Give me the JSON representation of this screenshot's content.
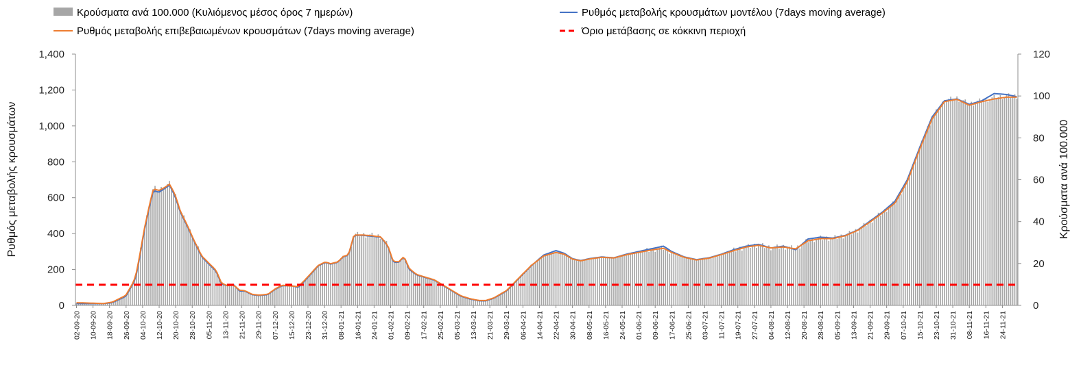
{
  "chart_data": {
    "type": "bar+line",
    "title": "",
    "legend": [
      {
        "key": "bars",
        "label": "Κρούσματα ανά 100.000 (Κυλιόμενος μέσος όρος 7 ημερών)",
        "color": "#a6a6a6",
        "symbol": "box"
      },
      {
        "key": "model",
        "label": "Ρυθμός μεταβολής κρουσμάτων μοντέλου (7days moving average)",
        "color": "#4472c4",
        "symbol": "line"
      },
      {
        "key": "confirmed",
        "label": "Ρυθμός μεταβολής επιβεβαιωμένων κρουσμάτων (7days moving average)",
        "color": "#ed7d31",
        "symbol": "line"
      },
      {
        "key": "threshold",
        "label": "Όριο μετάβασης σε κόκκινη περιοχή",
        "color": "#ff0000",
        "symbol": "dash"
      }
    ],
    "y_left": {
      "label": "Ρυθμός μεταβολής κρουσμάτων",
      "ylim": [
        0,
        1400
      ],
      "ticks": [
        "0",
        "200",
        "400",
        "600",
        "800",
        "1,000",
        "1,200",
        "1,400"
      ]
    },
    "y_right": {
      "label": "Κρούσματα ανά 100.000",
      "ylim": [
        0,
        120
      ],
      "ticks": [
        "0",
        "20",
        "40",
        "60",
        "80",
        "100",
        "120"
      ]
    },
    "x_tick_labels": [
      "02-09-20",
      "10-09-20",
      "18-09-20",
      "26-09-20",
      "04-10-20",
      "12-10-20",
      "20-10-20",
      "28-10-20",
      "05-11-20",
      "13-11-20",
      "21-11-20",
      "29-11-20",
      "07-12-20",
      "15-12-20",
      "23-12-20",
      "31-12-20",
      "08-01-21",
      "16-01-21",
      "24-01-21",
      "01-02-21",
      "09-02-21",
      "17-02-21",
      "25-02-21",
      "05-03-21",
      "13-03-21",
      "21-03-21",
      "29-03-21",
      "06-04-21",
      "14-04-21",
      "22-04-21",
      "30-04-21",
      "08-05-21",
      "16-05-21",
      "24-05-21",
      "01-06-21",
      "09-06-21",
      "17-06-21",
      "25-06-21",
      "03-07-21",
      "11-07-21",
      "19-07-21",
      "27-07-21",
      "04-08-21",
      "12-08-21",
      "20-08-21",
      "28-08-21",
      "05-09-21",
      "13-09-21",
      "21-09-21",
      "29-09-21",
      "07-10-21",
      "15-10-21",
      "23-10-21",
      "31-10-21",
      "08-11-21",
      "16-11-21",
      "24-11-21"
    ],
    "x_tick_step_days": 8,
    "days": 456,
    "threshold_left_axis": 115,
    "series": [
      {
        "name": "Ρυθμός μεταβολής κρουσμάτων μοντέλου (7days moving average)",
        "axis": "left",
        "keyframes": [
          [
            0,
            10
          ],
          [
            20,
            10
          ],
          [
            30,
            10
          ],
          [
            40,
            15
          ],
          [
            55,
            50
          ],
          [
            62,
            110
          ],
          [
            66,
            150
          ],
          [
            70,
            250
          ],
          [
            76,
            420
          ],
          [
            82,
            560
          ],
          [
            86,
            640
          ],
          [
            92,
            630
          ],
          [
            98,
            650
          ],
          [
            104,
            670
          ],
          [
            110,
            610
          ],
          [
            116,
            520
          ],
          [
            124,
            440
          ],
          [
            132,
            350
          ],
          [
            140,
            270
          ],
          [
            148,
            230
          ],
          [
            156,
            190
          ],
          [
            162,
            120
          ],
          [
            168,
            110
          ],
          [
            176,
            115
          ],
          [
            182,
            80
          ],
          [
            188,
            80
          ],
          [
            196,
            60
          ],
          [
            204,
            55
          ],
          [
            214,
            60
          ],
          [
            222,
            90
          ],
          [
            230,
            110
          ],
          [
            240,
            110
          ],
          [
            248,
            100
          ],
          [
            254,
            130
          ],
          [
            262,
            175
          ],
          [
            270,
            220
          ],
          [
            278,
            240
          ],
          [
            284,
            230
          ],
          [
            292,
            240
          ],
          [
            298,
            270
          ],
          [
            304,
            280
          ],
          [
            310,
            390
          ],
          [
            320,
            390
          ],
          [
            330,
            385
          ],
          [
            340,
            380
          ],
          [
            348,
            330
          ],
          [
            354,
            240
          ],
          [
            360,
            240
          ],
          [
            366,
            270
          ],
          [
            372,
            200
          ],
          [
            380,
            170
          ],
          [
            390,
            155
          ],
          [
            400,
            140
          ],
          [
            410,
            110
          ],
          [
            420,
            80
          ],
          [
            430,
            50
          ],
          [
            440,
            35
          ],
          [
            450,
            25
          ],
          [
            456,
            25
          ]
        ],
        "color": "#4472c4"
      },
      {
        "name": "Ρυθμός μεταβολής επιβεβαιωμένων κρουσμάτων (7days moving average)",
        "axis": "left",
        "keyframes": [
          [
            0,
            15
          ],
          [
            20,
            12
          ],
          [
            30,
            10
          ],
          [
            40,
            18
          ],
          [
            55,
            55
          ],
          [
            62,
            115
          ],
          [
            66,
            160
          ],
          [
            70,
            260
          ],
          [
            76,
            430
          ],
          [
            82,
            570
          ],
          [
            86,
            650
          ],
          [
            92,
            640
          ],
          [
            98,
            655
          ],
          [
            104,
            675
          ],
          [
            110,
            620
          ],
          [
            116,
            525
          ],
          [
            124,
            445
          ],
          [
            132,
            355
          ],
          [
            140,
            275
          ],
          [
            148,
            235
          ],
          [
            156,
            195
          ],
          [
            162,
            125
          ],
          [
            168,
            110
          ],
          [
            176,
            112
          ],
          [
            182,
            85
          ],
          [
            188,
            82
          ],
          [
            196,
            62
          ],
          [
            204,
            57
          ],
          [
            214,
            62
          ],
          [
            222,
            92
          ],
          [
            230,
            112
          ],
          [
            240,
            108
          ],
          [
            248,
            105
          ],
          [
            254,
            135
          ],
          [
            262,
            178
          ],
          [
            270,
            222
          ],
          [
            278,
            242
          ],
          [
            284,
            232
          ],
          [
            292,
            242
          ],
          [
            298,
            272
          ],
          [
            304,
            282
          ],
          [
            310,
            392
          ],
          [
            320,
            392
          ],
          [
            330,
            388
          ],
          [
            340,
            382
          ],
          [
            348,
            332
          ],
          [
            354,
            245
          ],
          [
            360,
            242
          ],
          [
            366,
            272
          ],
          [
            372,
            205
          ],
          [
            380,
            172
          ],
          [
            390,
            157
          ],
          [
            400,
            142
          ],
          [
            410,
            112
          ],
          [
            420,
            82
          ],
          [
            430,
            52
          ],
          [
            440,
            37
          ],
          [
            450,
            27
          ],
          [
            456,
            27
          ]
        ],
        "color": "#ed7d31"
      }
    ],
    "tail_model_keyframes": [
      [
        0,
        25
      ],
      [
        4,
        40
      ],
      [
        10,
        80
      ],
      [
        16,
        150
      ],
      [
        22,
        220
      ],
      [
        28,
        280
      ],
      [
        34,
        305
      ],
      [
        38,
        290
      ],
      [
        42,
        260
      ],
      [
        46,
        250
      ],
      [
        50,
        260
      ],
      [
        56,
        270
      ],
      [
        62,
        265
      ],
      [
        68,
        285
      ],
      [
        74,
        300
      ],
      [
        80,
        315
      ],
      [
        86,
        330
      ],
      [
        90,
        300
      ],
      [
        96,
        270
      ],
      [
        102,
        255
      ],
      [
        108,
        265
      ],
      [
        114,
        285
      ],
      [
        120,
        310
      ],
      [
        126,
        330
      ],
      [
        132,
        340
      ],
      [
        138,
        320
      ],
      [
        144,
        330
      ],
      [
        150,
        310
      ],
      [
        156,
        370
      ],
      [
        162,
        380
      ],
      [
        168,
        375
      ],
      [
        174,
        390
      ],
      [
        180,
        420
      ],
      [
        186,
        470
      ],
      [
        192,
        520
      ],
      [
        198,
        580
      ],
      [
        204,
        700
      ],
      [
        210,
        880
      ],
      [
        216,
        1050
      ],
      [
        222,
        1140
      ],
      [
        228,
        1150
      ],
      [
        234,
        1120
      ],
      [
        240,
        1140
      ],
      [
        246,
        1180
      ],
      [
        252,
        1175
      ],
      [
        258,
        1160
      ]
    ],
    "tail_confirmed_keyframes": [
      [
        0,
        27
      ],
      [
        4,
        42
      ],
      [
        10,
        82
      ],
      [
        16,
        152
      ],
      [
        22,
        222
      ],
      [
        28,
        275
      ],
      [
        34,
        295
      ],
      [
        38,
        285
      ],
      [
        42,
        258
      ],
      [
        46,
        248
      ],
      [
        50,
        258
      ],
      [
        56,
        268
      ],
      [
        62,
        264
      ],
      [
        68,
        282
      ],
      [
        74,
        295
      ],
      [
        80,
        308
      ],
      [
        86,
        318
      ],
      [
        90,
        295
      ],
      [
        96,
        268
      ],
      [
        102,
        253
      ],
      [
        108,
        263
      ],
      [
        114,
        283
      ],
      [
        120,
        305
      ],
      [
        126,
        325
      ],
      [
        132,
        335
      ],
      [
        138,
        320
      ],
      [
        144,
        325
      ],
      [
        150,
        315
      ],
      [
        156,
        360
      ],
      [
        162,
        372
      ],
      [
        168,
        372
      ],
      [
        174,
        388
      ],
      [
        180,
        418
      ],
      [
        186,
        465
      ],
      [
        192,
        515
      ],
      [
        198,
        570
      ],
      [
        204,
        690
      ],
      [
        210,
        870
      ],
      [
        216,
        1040
      ],
      [
        222,
        1135
      ],
      [
        228,
        1148
      ],
      [
        234,
        1115
      ],
      [
        240,
        1135
      ],
      [
        246,
        1150
      ],
      [
        252,
        1160
      ],
      [
        258,
        1160
      ]
    ],
    "bars_note": "Daily bars on right axis (cases per 100,000); height tracks the confirmed rate curve scaled to the right axis (max ~104 in Nov-21)."
  }
}
